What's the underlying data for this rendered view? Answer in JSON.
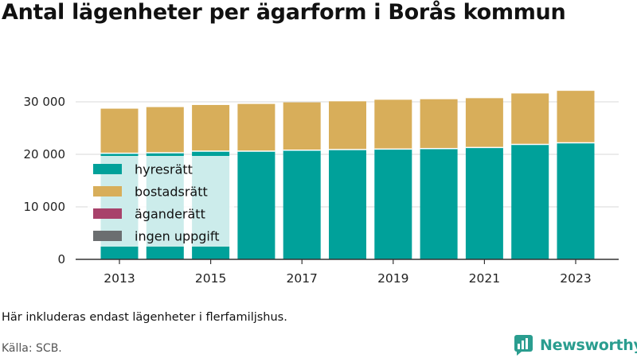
{
  "title": "Antal lägenheter per ägarform i Borås kommun",
  "note": "Här inkluderas endast lägenheter i flerfamiljshus.",
  "source": "Källa: SCB.",
  "brand": "Newsworthy",
  "colors": {
    "hyresratt": "#00a19a",
    "bostadsratt": "#d8ae5a",
    "aganderatt": "#a8426b",
    "ingen_uppgift": "#6b6e70",
    "legend_bg": "#ffffff",
    "grid": "#d9d9d9",
    "axis": "#333333",
    "brand": "#2a9d8f"
  },
  "chart_data": {
    "type": "bar",
    "stacked": true,
    "categories": [
      "2013",
      "2014",
      "2015",
      "2016",
      "2017",
      "2018",
      "2019",
      "2020",
      "2021",
      "2022",
      "2023"
    ],
    "x_tick_labels": [
      "2013",
      "2015",
      "2017",
      "2019",
      "2021",
      "2023"
    ],
    "y_ticks": [
      0,
      10000,
      20000,
      30000
    ],
    "y_tick_labels": [
      "0",
      "10 000",
      "20 000",
      "30 000"
    ],
    "ylim": [
      0,
      32000
    ],
    "grid": true,
    "legend_position": "left-inside",
    "series": [
      {
        "name": "hyresrätt",
        "values": [
          20200,
          20300,
          20600,
          20600,
          20800,
          20900,
          21000,
          21100,
          21300,
          21900,
          22200
        ]
      },
      {
        "name": "bostadsrätt",
        "values": [
          8500,
          8700,
          8800,
          9000,
          9100,
          9200,
          9400,
          9400,
          9400,
          9700,
          9900
        ]
      },
      {
        "name": "äganderätt",
        "values": [
          0,
          0,
          0,
          0,
          0,
          0,
          0,
          0,
          0,
          0,
          0
        ]
      },
      {
        "name": "ingen uppgift",
        "values": [
          0,
          0,
          0,
          0,
          0,
          0,
          0,
          0,
          0,
          0,
          0
        ]
      }
    ]
  }
}
